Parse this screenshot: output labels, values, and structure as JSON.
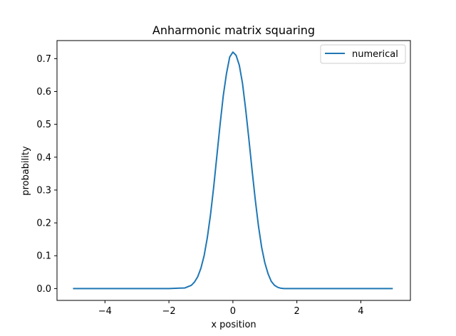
{
  "chart_data": {
    "type": "line",
    "title": "Anharmonic matrix squaring",
    "xlabel": "x position",
    "ylabel": "probability",
    "xlim": [
      -5.5,
      5.55
    ],
    "ylim": [
      -0.036,
      0.755
    ],
    "xticks": [
      -4,
      -2,
      0,
      2,
      4
    ],
    "xtick_labels": [
      "−4",
      "−2",
      "0",
      "2",
      "4"
    ],
    "yticks": [
      0.0,
      0.1,
      0.2,
      0.3,
      0.4,
      0.5,
      0.6,
      0.7
    ],
    "ytick_labels": [
      "0.0",
      "0.1",
      "0.2",
      "0.3",
      "0.4",
      "0.5",
      "0.6",
      "0.7"
    ],
    "grid": false,
    "legend": {
      "placement": "top-right",
      "entries": [
        "numerical"
      ]
    },
    "series": [
      {
        "name": "numerical",
        "color": "#1f77b4",
        "x": [
          -5.0,
          -4.0,
          -3.0,
          -2.0,
          -1.5,
          -1.3,
          -1.2,
          -1.1,
          -1.0,
          -0.9,
          -0.8,
          -0.7,
          -0.6,
          -0.5,
          -0.4,
          -0.3,
          -0.2,
          -0.1,
          0.0,
          0.1,
          0.2,
          0.3,
          0.4,
          0.5,
          0.6,
          0.7,
          0.8,
          0.9,
          1.0,
          1.1,
          1.2,
          1.3,
          1.4,
          1.5,
          1.6,
          1.7,
          1.8,
          2.0,
          2.2,
          3.0,
          4.0,
          5.0
        ],
        "y": [
          0.0,
          0.0,
          0.0,
          0.0,
          0.002,
          0.01,
          0.02,
          0.036,
          0.062,
          0.1,
          0.155,
          0.225,
          0.31,
          0.405,
          0.5,
          0.588,
          0.655,
          0.705,
          0.72,
          0.71,
          0.68,
          0.625,
          0.545,
          0.455,
          0.36,
          0.27,
          0.19,
          0.125,
          0.078,
          0.045,
          0.022,
          0.01,
          0.004,
          0.001,
          0.0,
          0.0,
          0.0,
          0.0,
          0.0,
          0.0,
          0.0,
          0.0
        ]
      }
    ]
  }
}
